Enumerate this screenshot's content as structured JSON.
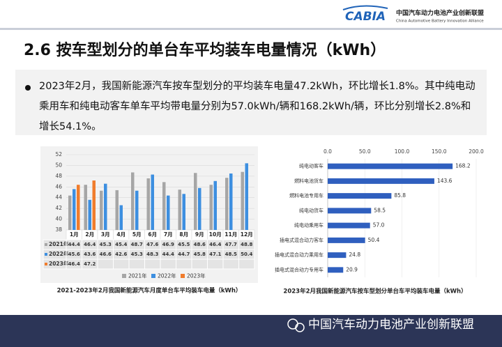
{
  "header": {
    "logo": "CABIA",
    "org_cn": "中国汽车动力电池产业创新联盟",
    "org_en": "China Automotive Battery Innovation Alliance"
  },
  "title": "2.6 按车型划分的单台车平均装车电量情况（kWh）",
  "bullet": "2023年2月，我国新能源汽车按车型划分的平均装车电量47.2kWh，环比增长1.8%。其中纯电动乘用车和纯电动客车单车平均带电量分别为57.0kWh/辆和168.2kWh/辆，环比分别增长2.8%和增长54.1%。",
  "footer": "中国汽车动力电池产业创新联盟",
  "chart_data": [
    {
      "type": "bar",
      "title": "2021-2023年2月我国新能源汽车月度单台车平均装车电量（kWh）",
      "categories": [
        "1月",
        "2月",
        "3月",
        "4月",
        "5月",
        "6月",
        "7月",
        "8月",
        "9月",
        "10月",
        "11月",
        "12月"
      ],
      "series": [
        {
          "name": "2021年",
          "color": "#a6a6a6",
          "values": [
            44.4,
            46.4,
            45.3,
            45.4,
            48.7,
            47.6,
            46.9,
            45.5,
            48.6,
            46.4,
            47.7,
            48.8
          ]
        },
        {
          "name": "2022年",
          "color": "#3d8fe0",
          "values": [
            45.6,
            43.6,
            46.6,
            42.6,
            45.3,
            48.3,
            44.4,
            44.7,
            45.8,
            47.1,
            48.5,
            50.4
          ]
        },
        {
          "name": "2023年",
          "color": "#f07c2c",
          "values": [
            46.4,
            47.2,
            null,
            null,
            null,
            null,
            null,
            null,
            null,
            null,
            null,
            null
          ]
        }
      ],
      "ylim": [
        38,
        52
      ],
      "yticks": [
        38,
        40,
        42,
        44,
        46,
        48,
        50,
        52
      ],
      "grid": true,
      "data_table": true,
      "legend": "bottom"
    },
    {
      "type": "barh",
      "title": "2023年2月我国新能源汽车按车型划分单台车平均装车电量（kWh）",
      "categories": [
        "纯电动客车",
        "燃料电池货车",
        "燃料电池专用车",
        "纯电动货车",
        "纯电动乘用车",
        "插电式混合动力客车",
        "插电式混合动力乘用车",
        "插电式混合动力专用车"
      ],
      "values": [
        168.2,
        143.6,
        85.8,
        58.5,
        57.0,
        50.4,
        24.8,
        20.9
      ],
      "value_labels": [
        "168.2",
        "143.6",
        "85.8",
        "58.5",
        "57.0",
        "50.4",
        "24.8",
        "20.9"
      ],
      "color": "#2f5fbf",
      "xlim": [
        0,
        200
      ],
      "xticks": [
        {
          "value": 0,
          "label": "0.0"
        },
        {
          "value": 50,
          "label": "50.0"
        },
        {
          "value": 100,
          "label": "100.0"
        },
        {
          "value": 150,
          "label": "150.0"
        },
        {
          "value": 200,
          "label": "200.0"
        }
      ],
      "grid": true
    }
  ]
}
